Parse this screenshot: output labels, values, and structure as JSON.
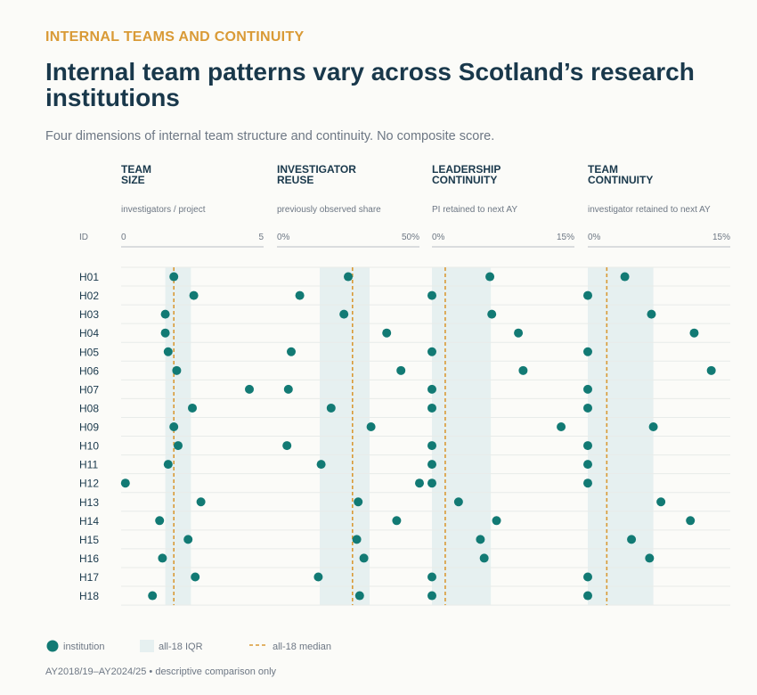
{
  "eyebrow": "INTERNAL TEAMS AND CONTINUITY",
  "title": "Internal team patterns vary across Scotland’s research institutions",
  "subtitle": "Four dimensions of internal team structure and continuity. No composite score.",
  "footer": "AY2018/19–AY2024/25 • descriptive comparison only",
  "colors": {
    "accent": "#d99a36",
    "dot": "#127a74",
    "iqr": "#e6f0f0",
    "title": "#19384b",
    "muted": "#6d7784",
    "rule": "#b9bec4",
    "grid": "#e8ebe9"
  },
  "chart_data": {
    "type": "scatter",
    "id_label": "ID",
    "rows": [
      "H01",
      "H02",
      "H03",
      "H04",
      "H05",
      "H06",
      "H07",
      "H08",
      "H09",
      "H10",
      "H11",
      "H12",
      "H13",
      "H14",
      "H15",
      "H16",
      "H17",
      "H18"
    ],
    "panels": [
      {
        "title": "TEAM SIZE",
        "subtitle": "investigators / project",
        "xlim": [
          0,
          5
        ],
        "tick_min_label": "0",
        "tick_max_label": "5",
        "iqr": [
          1.55,
          2.45
        ],
        "median": 1.85,
        "values": [
          1.85,
          2.55,
          1.55,
          1.55,
          1.65,
          1.95,
          4.5,
          2.5,
          1.85,
          2.0,
          1.65,
          0.15,
          2.8,
          1.35,
          2.35,
          1.45,
          2.6,
          1.1
        ]
      },
      {
        "title": "INVESTIGATOR REUSE",
        "subtitle": "previously observed share",
        "xlim": [
          0,
          50
        ],
        "tick_min_label": "0%",
        "tick_max_label": "50%",
        "iqr": [
          15,
          32.5
        ],
        "median": 26.5,
        "values": [
          25,
          8,
          23.5,
          38.5,
          5,
          43.5,
          4,
          19,
          33,
          3.5,
          15.5,
          50,
          28.5,
          42,
          28,
          30.5,
          14.5,
          29
        ]
      },
      {
        "title": "LEADERSHIP CONTINUITY",
        "subtitle": "PI retained to next AY",
        "xlim": [
          0,
          15
        ],
        "tick_min_label": "0%",
        "tick_max_label": "15%",
        "iqr": [
          0,
          6.2
        ],
        "median": 1.4,
        "values": [
          6.1,
          0,
          6.3,
          9.1,
          0,
          9.6,
          0,
          0,
          13.6,
          0,
          0,
          0,
          2.8,
          6.8,
          5.1,
          5.5,
          0,
          0
        ]
      },
      {
        "title": "TEAM CONTINUITY",
        "subtitle": "investigator retained to next AY",
        "xlim": [
          0,
          15
        ],
        "tick_min_label": "0%",
        "tick_max_label": "15%",
        "iqr": [
          0,
          6.9
        ],
        "median": 2.0,
        "values": [
          3.9,
          0,
          6.7,
          11.2,
          0,
          13.0,
          0,
          0,
          6.9,
          0,
          0,
          0,
          7.7,
          10.8,
          4.6,
          6.5,
          0,
          0
        ]
      }
    ],
    "legend": {
      "institution": "institution",
      "iqr": "all-18 IQR",
      "median": "all-18 median"
    }
  }
}
